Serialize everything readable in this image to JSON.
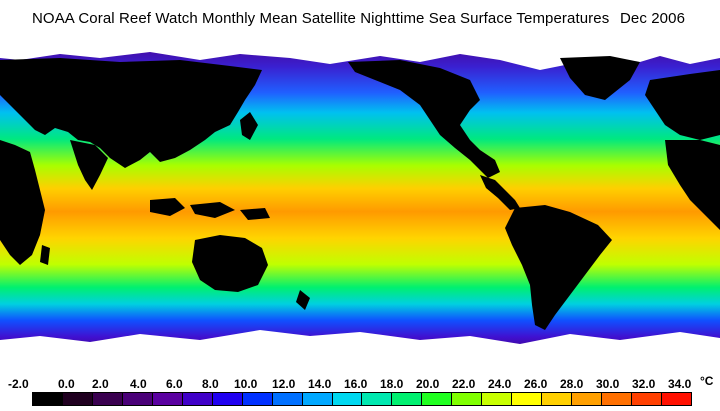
{
  "title": "NOAA Coral Reef Watch Monthly Mean Satellite Nighttime Sea Surface Temperatures",
  "date": "Dec 2006",
  "legend": {
    "ticks": [
      "-2.0",
      "0.0",
      "2.0",
      "4.0",
      "6.0",
      "8.0",
      "10.0",
      "12.0",
      "14.0",
      "16.0",
      "18.0",
      "20.0",
      "22.0",
      "24.0",
      "26.0",
      "28.0",
      "30.0",
      "32.0",
      "34.0"
    ],
    "unit": "°C",
    "colors": [
      "#000000",
      "#200020",
      "#3a0050",
      "#4a0078",
      "#5a00a0",
      "#4000c8",
      "#2000f0",
      "#0030ff",
      "#0070ff",
      "#00a8ff",
      "#00d8f0",
      "#00e8b0",
      "#00f070",
      "#20ff20",
      "#80ff00",
      "#c8ff00",
      "#ffff00",
      "#ffd000",
      "#ffa000",
      "#ff7000",
      "#ff4000",
      "#ff1000"
    ]
  },
  "map": {
    "ocean_tropical_color": "#ff9a00",
    "ocean_subtropical_color": "#e8ff00",
    "ocean_temperate_color": "#00e0a0",
    "ocean_cold_color": "#2030ff",
    "ocean_polar_color": "#5000a0",
    "land_color": "#000000",
    "ice_color": "#ffffff"
  }
}
